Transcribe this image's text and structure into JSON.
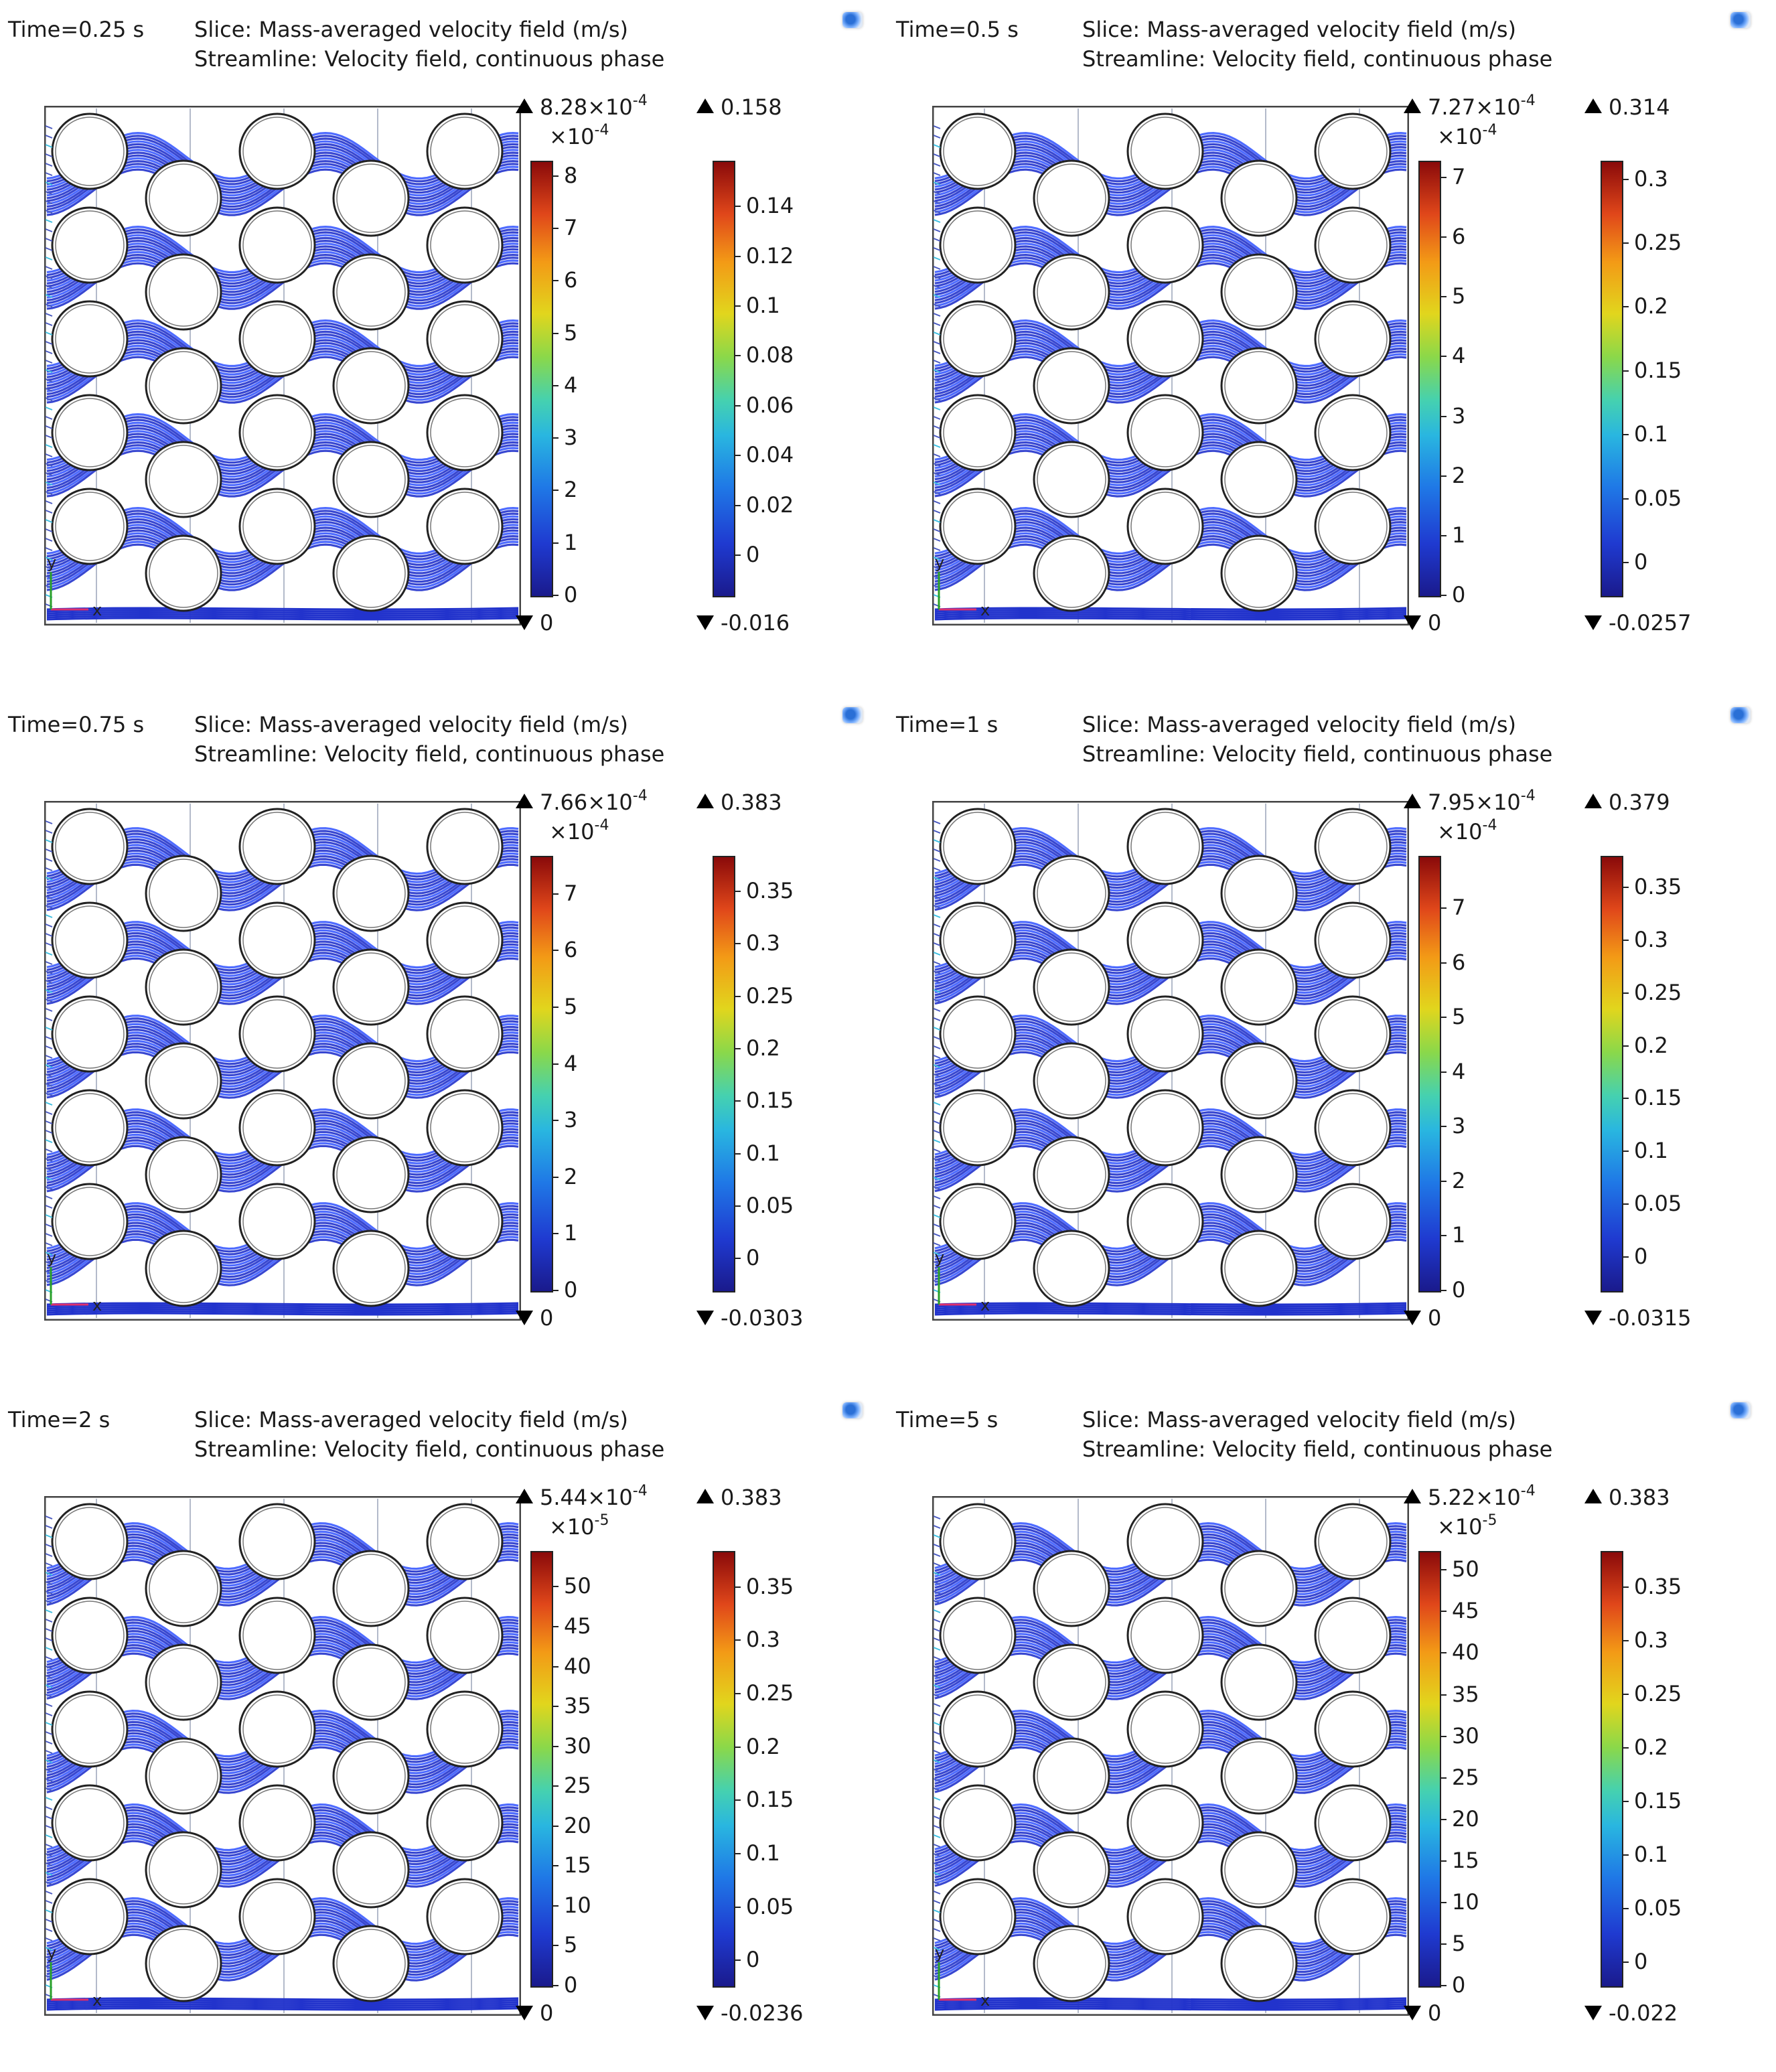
{
  "panels": [
    {
      "time": "Time=0.25 s",
      "slice_title": "Slice: Mass-averaged velocity field (m/s)",
      "streamline_title": "Streamline: Velocity field, continuous phase",
      "vel_colorbar": {
        "max_mantissa": "8.28×10",
        "max_exp": "-4",
        "mult_base": "×10",
        "mult_exp": "-4",
        "ticks": [
          "8",
          "7",
          "6",
          "5",
          "4",
          "3",
          "2",
          "1",
          "0"
        ],
        "tick_values": [
          8,
          7,
          6,
          5,
          4,
          3,
          2,
          1,
          0
        ],
        "range": [
          0,
          8.28
        ],
        "min": "0"
      },
      "slice_colorbar": {
        "max": "0.158",
        "min": "-0.016",
        "ticks": [
          "0.14",
          "0.12",
          "0.1",
          "0.08",
          "0.06",
          "0.04",
          "0.02",
          "0"
        ],
        "tick_values": [
          0.14,
          0.12,
          0.1,
          0.08,
          0.06,
          0.04,
          0.02,
          0
        ],
        "range": [
          -0.016,
          0.158
        ]
      }
    },
    {
      "time": "Time=0.5 s",
      "slice_title": "Slice: Mass-averaged velocity field (m/s)",
      "streamline_title": "Streamline: Velocity field, continuous phase",
      "vel_colorbar": {
        "max_mantissa": "7.27×10",
        "max_exp": "-4",
        "mult_base": "×10",
        "mult_exp": "-4",
        "ticks": [
          "7",
          "6",
          "5",
          "4",
          "3",
          "2",
          "1",
          "0"
        ],
        "tick_values": [
          7,
          6,
          5,
          4,
          3,
          2,
          1,
          0
        ],
        "range": [
          0,
          7.27
        ],
        "min": "0"
      },
      "slice_colorbar": {
        "max": "0.314",
        "min": "-0.0257",
        "ticks": [
          "0.3",
          "0.25",
          "0.2",
          "0.15",
          "0.1",
          "0.05",
          "0"
        ],
        "tick_values": [
          0.3,
          0.25,
          0.2,
          0.15,
          0.1,
          0.05,
          0
        ],
        "range": [
          -0.0257,
          0.314
        ]
      }
    },
    {
      "time": "Time=0.75 s",
      "slice_title": "Slice: Mass-averaged velocity field (m/s)",
      "streamline_title": "Streamline: Velocity field, continuous phase",
      "vel_colorbar": {
        "max_mantissa": "7.66×10",
        "max_exp": "-4",
        "mult_base": "×10",
        "mult_exp": "-4",
        "ticks": [
          "7",
          "6",
          "5",
          "4",
          "3",
          "2",
          "1",
          "0"
        ],
        "tick_values": [
          7,
          6,
          5,
          4,
          3,
          2,
          1,
          0
        ],
        "range": [
          0,
          7.66
        ],
        "min": "0"
      },
      "slice_colorbar": {
        "max": "0.383",
        "min": "-0.0303",
        "ticks": [
          "0.35",
          "0.3",
          "0.25",
          "0.2",
          "0.15",
          "0.1",
          "0.05",
          "0"
        ],
        "tick_values": [
          0.35,
          0.3,
          0.25,
          0.2,
          0.15,
          0.1,
          0.05,
          0
        ],
        "range": [
          -0.0303,
          0.383
        ]
      }
    },
    {
      "time": "Time=1 s",
      "slice_title": "Slice: Mass-averaged velocity field (m/s)",
      "streamline_title": "Streamline: Velocity field, continuous phase",
      "vel_colorbar": {
        "max_mantissa": "7.95×10",
        "max_exp": "-4",
        "mult_base": "×10",
        "mult_exp": "-4",
        "ticks": [
          "7",
          "6",
          "5",
          "4",
          "3",
          "2",
          "1",
          "0"
        ],
        "tick_values": [
          7,
          6,
          5,
          4,
          3,
          2,
          1,
          0
        ],
        "range": [
          0,
          7.95
        ],
        "min": "0"
      },
      "slice_colorbar": {
        "max": "0.379",
        "min": "-0.0315",
        "ticks": [
          "0.35",
          "0.3",
          "0.25",
          "0.2",
          "0.15",
          "0.1",
          "0.05",
          "0"
        ],
        "tick_values": [
          0.35,
          0.3,
          0.25,
          0.2,
          0.15,
          0.1,
          0.05,
          0
        ],
        "range": [
          -0.0315,
          0.379
        ]
      }
    },
    {
      "time": "Time=2 s",
      "slice_title": "Slice: Mass-averaged velocity field (m/s)",
      "streamline_title": "Streamline: Velocity field, continuous phase",
      "vel_colorbar": {
        "max_mantissa": "5.44×10",
        "max_exp": "-4",
        "mult_base": "×10",
        "mult_exp": "-5",
        "ticks": [
          "50",
          "45",
          "40",
          "35",
          "30",
          "25",
          "20",
          "15",
          "10",
          "5",
          "0"
        ],
        "tick_values": [
          50,
          45,
          40,
          35,
          30,
          25,
          20,
          15,
          10,
          5,
          0
        ],
        "range": [
          0,
          54.4
        ],
        "min": "0"
      },
      "slice_colorbar": {
        "max": "0.383",
        "min": "-0.0236",
        "ticks": [
          "0.35",
          "0.3",
          "0.25",
          "0.2",
          "0.15",
          "0.1",
          "0.05",
          "0"
        ],
        "tick_values": [
          0.35,
          0.3,
          0.25,
          0.2,
          0.15,
          0.1,
          0.05,
          0
        ],
        "range": [
          -0.0236,
          0.383
        ]
      }
    },
    {
      "time": "Time=5 s",
      "slice_title": "Slice: Mass-averaged velocity field (m/s)",
      "streamline_title": "Streamline: Velocity field, continuous phase",
      "vel_colorbar": {
        "max_mantissa": "5.22×10",
        "max_exp": "-4",
        "mult_base": "×10",
        "mult_exp": "-5",
        "ticks": [
          "50",
          "45",
          "40",
          "35",
          "30",
          "25",
          "20",
          "15",
          "10",
          "5",
          "0"
        ],
        "tick_values": [
          50,
          45,
          40,
          35,
          30,
          25,
          20,
          15,
          10,
          5,
          0
        ],
        "range": [
          0,
          52.2
        ],
        "min": "0"
      },
      "slice_colorbar": {
        "max": "0.383",
        "min": "-0.022",
        "ticks": [
          "0.35",
          "0.3",
          "0.25",
          "0.2",
          "0.15",
          "0.1",
          "0.05",
          "0"
        ],
        "tick_values": [
          0.35,
          0.3,
          0.25,
          0.2,
          0.15,
          0.1,
          0.05,
          0
        ],
        "range": [
          -0.022,
          0.383
        ]
      }
    }
  ],
  "axis_labels": {
    "x": "x",
    "y": "y"
  },
  "colors": {
    "streamline": "#2233cc",
    "streamline_light": "#3b5bff",
    "cylinder_edge": "#222222",
    "background": "#ffffff",
    "x_axis_arrow": "#e0306e",
    "y_axis_arrow": "#2aa02a"
  },
  "icons": {
    "corner": "comsol-view-icon"
  }
}
